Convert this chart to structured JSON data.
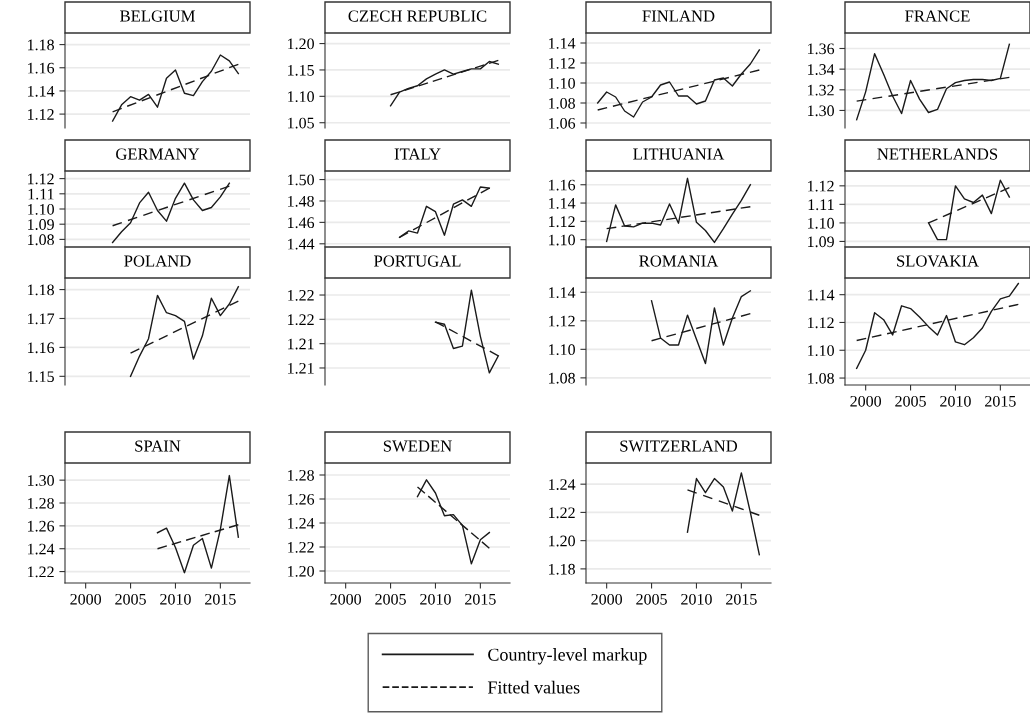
{
  "chart_data": [
    {
      "type": "line",
      "title": "BELGIUM",
      "xlim": [
        1997.7,
        2018.3
      ],
      "xticks": [
        2000,
        2005,
        2010,
        2015
      ],
      "ylim": [
        1.108,
        1.19
      ],
      "yticks": [
        1.12,
        1.14,
        1.16,
        1.18
      ],
      "tick_labels": "y",
      "grid": "y",
      "legend": "bottom",
      "series": [
        {
          "name": "Country-level markup",
          "color": "#1a1a1a",
          "line_style": "solid",
          "x": [
            2003,
            2004,
            2005,
            2006,
            2007,
            2008,
            2009,
            2010,
            2011,
            2012,
            2013,
            2014,
            2015,
            2016,
            2017
          ],
          "values": [
            1.114,
            1.128,
            1.135,
            1.132,
            1.137,
            1.126,
            1.151,
            1.158,
            1.138,
            1.136,
            1.148,
            1.157,
            1.171,
            1.166,
            1.155
          ]
        },
        {
          "name": "Fitted values",
          "color": "#1a1a1a",
          "line_style": "dashed",
          "x": [
            2003,
            2017
          ],
          "values": [
            1.122,
            1.163
          ]
        }
      ]
    },
    {
      "type": "line",
      "title": "CZECH REPUBLIC",
      "xlim": [
        1997.7,
        2018.3
      ],
      "xticks": [
        2000,
        2005,
        2010,
        2015
      ],
      "ylim": [
        1.04,
        1.22
      ],
      "yticks": [
        1.05,
        {
          "value": 1.1,
          "label": "1.10"
        },
        1.15,
        {
          "value": 1.2,
          "label": "1.20"
        }
      ],
      "tick_labels": "y",
      "grid": "y",
      "series": [
        {
          "name": "Country-level markup",
          "color": "#1a1a1a",
          "line_style": "solid",
          "x": [
            2005,
            2006,
            2007,
            2008,
            2009,
            2010,
            2011,
            2012,
            2013,
            2014,
            2015,
            2016,
            2017
          ],
          "values": [
            1.082,
            1.108,
            1.115,
            1.12,
            1.133,
            1.142,
            1.15,
            1.142,
            1.147,
            1.152,
            1.152,
            1.166,
            1.161
          ]
        },
        {
          "name": "Fitted values",
          "color": "#1a1a1a",
          "line_style": "dashed",
          "x": [
            2005,
            2017
          ],
          "values": [
            1.103,
            1.168
          ]
        }
      ]
    },
    {
      "type": "line",
      "title": "FINLAND",
      "xlim": [
        1997.7,
        2018.3
      ],
      "xticks": [
        2000,
        2005,
        2010,
        2015
      ],
      "ylim": [
        1.055,
        1.15
      ],
      "yticks": [
        1.06,
        1.08,
        {
          "value": 1.1,
          "label": "1.10"
        },
        1.12,
        1.14
      ],
      "tick_labels": "y",
      "grid": "y",
      "series": [
        {
          "name": "Country-level markup",
          "color": "#1a1a1a",
          "line_style": "solid",
          "x": [
            1999,
            2000,
            2001,
            2002,
            2003,
            2004,
            2005,
            2006,
            2007,
            2008,
            2009,
            2010,
            2011,
            2012,
            2013,
            2014,
            2015,
            2016,
            2017
          ],
          "values": [
            1.08,
            1.091,
            1.086,
            1.072,
            1.066,
            1.081,
            1.086,
            1.098,
            1.101,
            1.087,
            1.087,
            1.079,
            1.082,
            1.103,
            1.105,
            1.097,
            1.109,
            1.119,
            1.133
          ]
        },
        {
          "name": "Fitted values",
          "color": "#1a1a1a",
          "line_style": "dashed",
          "x": [
            1999,
            2017
          ],
          "values": [
            1.073,
            1.113
          ]
        }
      ]
    },
    {
      "type": "line",
      "title": "FRANCE",
      "xlim": [
        1997.7,
        2018.3
      ],
      "xticks": [
        2000,
        2005,
        2010,
        2015
      ],
      "ylim": [
        1.283,
        1.375
      ],
      "yticks": [
        {
          "value": 1.3,
          "label": "1.30"
        },
        1.32,
        1.34,
        1.36
      ],
      "tick_labels": "y",
      "grid": "y",
      "series": [
        {
          "name": "Country-level markup",
          "color": "#1a1a1a",
          "line_style": "solid",
          "x": [
            1999,
            2000,
            2001,
            2002,
            2003,
            2004,
            2005,
            2006,
            2007,
            2008,
            2009,
            2010,
            2011,
            2012,
            2013,
            2014,
            2015,
            2016
          ],
          "values": [
            1.291,
            1.318,
            1.355,
            1.335,
            1.314,
            1.297,
            1.329,
            1.311,
            1.298,
            1.301,
            1.321,
            1.327,
            1.329,
            1.33,
            1.33,
            1.329,
            1.331,
            1.364
          ]
        },
        {
          "name": "Fitted values",
          "color": "#1a1a1a",
          "line_style": "dashed",
          "x": [
            1999,
            2016
          ],
          "values": [
            1.309,
            1.332
          ]
        }
      ]
    },
    {
      "type": "line",
      "title": "GERMANY",
      "xlim": [
        1997.7,
        2018.3
      ],
      "xticks": [
        2000,
        2005,
        2010,
        2015
      ],
      "ylim": [
        1.075,
        1.125
      ],
      "yticks": [
        1.08,
        1.09,
        {
          "value": 1.1,
          "label": "1.10"
        },
        1.11,
        1.12
      ],
      "tick_labels": "y",
      "grid": "y",
      "series": [
        {
          "name": "Country-level markup",
          "color": "#1a1a1a",
          "line_style": "solid",
          "x": [
            2003,
            2004,
            2005,
            2006,
            2007,
            2008,
            2009,
            2010,
            2011,
            2012,
            2013,
            2014,
            2015,
            2016
          ],
          "values": [
            1.078,
            1.085,
            1.091,
            1.104,
            1.111,
            1.099,
            1.092,
            1.107,
            1.117,
            1.106,
            1.099,
            1.101,
            1.108,
            1.117
          ]
        },
        {
          "name": "Fitted values",
          "color": "#1a1a1a",
          "line_style": "dashed",
          "x": [
            2003,
            2016
          ],
          "values": [
            1.089,
            1.115
          ]
        }
      ]
    },
    {
      "type": "line",
      "title": "ITALY",
      "xlim": [
        1997.7,
        2018.3
      ],
      "xticks": [
        2000,
        2005,
        2010,
        2015
      ],
      "ylim": [
        1.437,
        1.508
      ],
      "yticks": [
        1.44,
        1.46,
        1.48,
        {
          "value": 1.5,
          "label": "1.50"
        }
      ],
      "tick_labels": "y",
      "grid": "y",
      "series": [
        {
          "name": "Country-level markup",
          "color": "#1a1a1a",
          "line_style": "solid",
          "x": [
            2006,
            2007,
            2008,
            2009,
            2010,
            2011,
            2012,
            2013,
            2014,
            2015,
            2016
          ],
          "values": [
            1.446,
            1.452,
            1.45,
            1.475,
            1.47,
            1.448,
            1.477,
            1.481,
            1.475,
            1.493,
            1.492
          ]
        },
        {
          "name": "Fitted values",
          "color": "#1a1a1a",
          "line_style": "dashed",
          "x": [
            2006,
            2016
          ],
          "values": [
            1.446,
            1.492
          ]
        }
      ]
    },
    {
      "type": "line",
      "title": "LITHUANIA",
      "xlim": [
        1997.7,
        2018.3
      ],
      "xticks": [
        2000,
        2005,
        2010,
        2015
      ],
      "ylim": [
        1.092,
        1.175
      ],
      "yticks": [
        {
          "value": 1.1,
          "label": "1.10"
        },
        1.12,
        1.14,
        1.16
      ],
      "tick_labels": "y",
      "grid": "y",
      "series": [
        {
          "name": "Country-level markup",
          "color": "#1a1a1a",
          "line_style": "solid",
          "x": [
            2000,
            2001,
            2002,
            2003,
            2004,
            2005,
            2006,
            2007,
            2008,
            2009,
            2010,
            2011,
            2012,
            2013,
            2014,
            2015,
            2016
          ],
          "values": [
            1.098,
            1.138,
            1.115,
            1.114,
            1.118,
            1.118,
            1.116,
            1.139,
            1.118,
            1.167,
            1.119,
            1.11,
            1.097,
            1.112,
            1.128,
            1.143,
            1.16
          ]
        },
        {
          "name": "Fitted values",
          "color": "#1a1a1a",
          "line_style": "dashed",
          "x": [
            2000,
            2016
          ],
          "values": [
            1.112,
            1.136
          ]
        }
      ]
    },
    {
      "type": "line",
      "title": "NETHERLANDS",
      "xlim": [
        1997.7,
        2018.3
      ],
      "xticks": [
        2000,
        2005,
        2010,
        2015
      ],
      "ylim": [
        1.087,
        1.128
      ],
      "yticks": [
        1.09,
        {
          "value": 1.1,
          "label": "1.10"
        },
        1.11,
        1.12
      ],
      "tick_labels": "y",
      "grid": "y",
      "series": [
        {
          "name": "Country-level markup",
          "color": "#1a1a1a",
          "line_style": "solid",
          "x": [
            2007,
            2008,
            2009,
            2010,
            2011,
            2012,
            2013,
            2014,
            2015,
            2016
          ],
          "values": [
            1.1,
            1.091,
            1.091,
            1.12,
            1.113,
            1.111,
            1.115,
            1.105,
            1.123,
            1.114
          ]
        },
        {
          "name": "Fitted values",
          "color": "#1a1a1a",
          "line_style": "dashed",
          "x": [
            2007,
            2016
          ],
          "values": [
            1.1,
            1.119
          ]
        }
      ]
    },
    {
      "type": "line",
      "title": "POLAND",
      "xlim": [
        1997.7,
        2018.3
      ],
      "xticks": [
        2000,
        2005,
        2010,
        2015
      ],
      "ylim": [
        1.147,
        1.184
      ],
      "yticks": [
        1.15,
        1.16,
        1.17,
        1.18
      ],
      "tick_labels": "y",
      "grid": "y",
      "series": [
        {
          "name": "Country-level markup",
          "color": "#1a1a1a",
          "line_style": "solid",
          "x": [
            2005,
            2006,
            2007,
            2008,
            2009,
            2010,
            2011,
            2012,
            2013,
            2014,
            2015,
            2016,
            2017
          ],
          "values": [
            1.15,
            1.157,
            1.163,
            1.178,
            1.172,
            1.171,
            1.169,
            1.156,
            1.164,
            1.177,
            1.171,
            1.175,
            1.181
          ]
        },
        {
          "name": "Fitted values",
          "color": "#1a1a1a",
          "line_style": "dashed",
          "x": [
            2005,
            2017
          ],
          "values": [
            1.158,
            1.176
          ]
        }
      ]
    },
    {
      "type": "line",
      "title": "PORTUGAL",
      "xlim": [
        1997.7,
        2018.3
      ],
      "xticks": [
        2000,
        2005,
        2010,
        2015
      ],
      "ylim": [
        1.2065,
        1.2285
      ],
      "yticks": [
        {
          "value": 1.21,
          "label": "1.21"
        },
        {
          "value": 1.215,
          "label": "1.21"
        },
        {
          "value": 1.22,
          "label": "1.22"
        },
        {
          "value": 1.225,
          "label": "1.22"
        }
      ],
      "tick_labels": "y",
      "grid": "y",
      "series": [
        {
          "name": "Country-level markup",
          "color": "#1a1a1a",
          "line_style": "solid",
          "x": [
            2010,
            2011,
            2012,
            2013,
            2014,
            2015,
            2016,
            2017
          ],
          "values": [
            1.2194,
            1.219,
            1.214,
            1.2145,
            1.226,
            1.2165,
            1.209,
            1.2125
          ]
        },
        {
          "name": "Fitted values",
          "color": "#1a1a1a",
          "line_style": "dashed",
          "x": [
            2010,
            2017
          ],
          "values": [
            1.2195,
            1.2125
          ]
        }
      ]
    },
    {
      "type": "line",
      "title": "ROMANIA",
      "xlim": [
        1997.7,
        2018.3
      ],
      "xticks": [
        2000,
        2005,
        2010,
        2015
      ],
      "ylim": [
        1.075,
        1.15
      ],
      "yticks": [
        1.08,
        {
          "value": 1.1,
          "label": "1.10"
        },
        1.12,
        1.14
      ],
      "tick_labels": "y",
      "grid": "y",
      "series": [
        {
          "name": "Country-level markup",
          "color": "#1a1a1a",
          "line_style": "solid",
          "x": [
            2005,
            2006,
            2007,
            2008,
            2009,
            2010,
            2011,
            2012,
            2013,
            2014,
            2015,
            2016
          ],
          "values": [
            1.134,
            1.108,
            1.103,
            1.103,
            1.124,
            1.107,
            1.09,
            1.129,
            1.103,
            1.122,
            1.137,
            1.141
          ]
        },
        {
          "name": "Fitted values",
          "color": "#1a1a1a",
          "line_style": "dashed",
          "x": [
            2005,
            2016
          ],
          "values": [
            1.106,
            1.125
          ]
        }
      ]
    },
    {
      "type": "line",
      "title": "SLOVAKIA",
      "xlim": [
        1997.7,
        2018.3
      ],
      "xticks": [
        2000,
        2005,
        2010,
        2015
      ],
      "ylim": [
        1.075,
        1.152
      ],
      "yticks": [
        1.08,
        {
          "value": 1.1,
          "label": "1.10"
        },
        1.12,
        1.14
      ],
      "grid": "y",
      "series": [
        {
          "name": "Country-level markup",
          "color": "#1a1a1a",
          "line_style": "solid",
          "x": [
            1999,
            2000,
            2001,
            2002,
            2003,
            2004,
            2005,
            2006,
            2007,
            2008,
            2009,
            2010,
            2011,
            2012,
            2013,
            2014,
            2015,
            2016,
            2017
          ],
          "values": [
            1.087,
            1.1,
            1.127,
            1.122,
            1.111,
            1.132,
            1.13,
            1.124,
            1.117,
            1.111,
            1.125,
            1.106,
            1.104,
            1.109,
            1.116,
            1.128,
            1.137,
            1.139,
            1.148
          ]
        },
        {
          "name": "Fitted values",
          "color": "#1a1a1a",
          "line_style": "dashed",
          "x": [
            1999,
            2017
          ],
          "values": [
            1.107,
            1.133
          ]
        }
      ]
    },
    {
      "type": "line",
      "title": "SPAIN",
      "xlim": [
        1997.7,
        2018.3
      ],
      "xticks": [
        2000,
        2005,
        2010,
        2015
      ],
      "ylim": [
        1.21,
        1.315
      ],
      "yticks": [
        1.22,
        1.24,
        1.26,
        1.28,
        {
          "value": 1.3,
          "label": "1.30"
        }
      ],
      "grid": "y",
      "series": [
        {
          "name": "Country-level markup",
          "color": "#1a1a1a",
          "line_style": "solid",
          "x": [
            2008,
            2009,
            2010,
            2011,
            2012,
            2013,
            2014,
            2015,
            2016,
            2017
          ],
          "values": [
            1.254,
            1.258,
            1.241,
            1.219,
            1.243,
            1.249,
            1.223,
            1.257,
            1.304,
            1.25
          ]
        },
        {
          "name": "Fitted values",
          "color": "#1a1a1a",
          "line_style": "dashed",
          "x": [
            2008,
            2017
          ],
          "values": [
            1.24,
            1.261
          ]
        }
      ]
    },
    {
      "type": "line",
      "title": "SWEDEN",
      "xlim": [
        1997.7,
        2018.3
      ],
      "xticks": [
        2000,
        2005,
        2010,
        2015
      ],
      "ylim": [
        1.19,
        1.29
      ],
      "yticks": [
        {
          "value": 1.2,
          "label": "1.20"
        },
        1.22,
        1.24,
        1.26,
        1.28
      ],
      "grid": "y",
      "series": [
        {
          "name": "Country-level markup",
          "color": "#1a1a1a",
          "line_style": "solid",
          "x": [
            2008,
            2009,
            2010,
            2011,
            2012,
            2013,
            2014,
            2015,
            2016
          ],
          "values": [
            1.262,
            1.276,
            1.265,
            1.246,
            1.247,
            1.238,
            1.206,
            1.226,
            1.232
          ]
        },
        {
          "name": "Fitted values",
          "color": "#1a1a1a",
          "line_style": "dashed",
          "x": [
            2008,
            2016
          ],
          "values": [
            1.27,
            1.219
          ]
        }
      ]
    },
    {
      "type": "line",
      "title": "SWITZERLAND",
      "xlim": [
        1997.7,
        2018.3
      ],
      "xticks": [
        2000,
        2005,
        2010,
        2015
      ],
      "ylim": [
        1.17,
        1.255
      ],
      "yticks": [
        1.18,
        {
          "value": 1.2,
          "label": "1.20"
        },
        1.22,
        1.24
      ],
      "grid": "y",
      "series": [
        {
          "name": "Country-level markup",
          "color": "#1a1a1a",
          "line_style": "solid",
          "x": [
            2009,
            2010,
            2011,
            2012,
            2013,
            2014,
            2015,
            2016,
            2017
          ],
          "values": [
            1.206,
            1.244,
            1.234,
            1.244,
            1.238,
            1.221,
            1.248,
            1.22,
            1.19
          ]
        },
        {
          "name": "Fitted values",
          "color": "#1a1a1a",
          "line_style": "dashed",
          "x": [
            2009,
            2017
          ],
          "values": [
            1.236,
            1.218
          ]
        }
      ]
    }
  ]
}
